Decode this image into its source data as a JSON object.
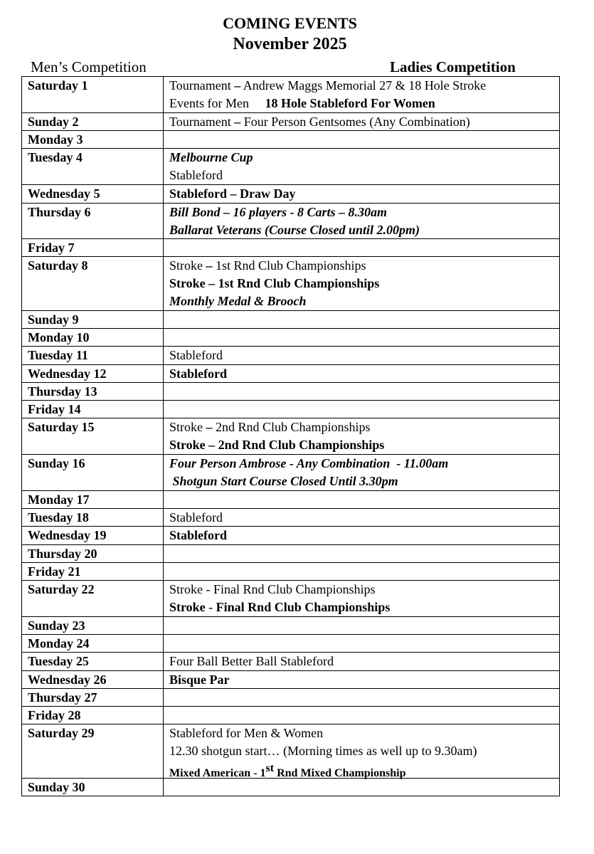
{
  "header": {
    "title": "COMING EVENTS",
    "month": "November 2025",
    "mens_label": "Men’s Competition",
    "ladies_label": "Ladies Competition"
  },
  "rows": [
    {
      "day": "Saturday 1",
      "lines": [
        [
          {
            "t": "Tournament ",
            "s": "n"
          },
          {
            "t": "–",
            "s": "b"
          },
          {
            "t": " Andrew Maggs Memorial 27 & 18 Hole Stroke",
            "s": "n"
          }
        ],
        [
          {
            "t": "Events for Men     ",
            "s": "n"
          },
          {
            "t": "18 Hole Stableford For Women",
            "s": "b"
          }
        ]
      ]
    },
    {
      "day": "Sunday 2",
      "lines": [
        [
          {
            "t": "Tournament ",
            "s": "n"
          },
          {
            "t": "–",
            "s": "b"
          },
          {
            "t": " Four Person Gentsomes (Any Combination)",
            "s": "n"
          }
        ]
      ]
    },
    {
      "day": "Monday 3",
      "lines": []
    },
    {
      "day": "Tuesday 4",
      "lines": [
        [
          {
            "t": "Melbourne Cup",
            "s": "bi"
          }
        ],
        [
          {
            "t": "Stableford",
            "s": "n"
          }
        ]
      ]
    },
    {
      "day": "Wednesday 5",
      "lines": [
        [
          {
            "t": "Stableford – Draw Day",
            "s": "b"
          }
        ]
      ]
    },
    {
      "day": "Thursday 6",
      "lines": [
        [
          {
            "t": "Bill Bond – 16 players - 8 Carts – 8.30am",
            "s": "bi"
          }
        ],
        [
          {
            "t": "Ballarat Veterans (Course Closed until 2.00pm)",
            "s": "bi"
          }
        ]
      ]
    },
    {
      "day": "Friday 7",
      "lines": []
    },
    {
      "day": "Saturday 8",
      "lines": [
        [
          {
            "t": "Stroke ",
            "s": "n"
          },
          {
            "t": "–",
            "s": "b"
          },
          {
            "t": " 1st Rnd Club Championships",
            "s": "n"
          }
        ],
        [
          {
            "t": "Stroke – 1st Rnd Club Championships",
            "s": "b"
          }
        ],
        [
          {
            "t": "Monthly Medal & Brooch",
            "s": "bi"
          }
        ]
      ]
    },
    {
      "day": "Sunday 9",
      "lines": []
    },
    {
      "day": "Monday 10",
      "lines": []
    },
    {
      "day": "Tuesday 11",
      "lines": [
        [
          {
            "t": "Stableford",
            "s": "n"
          }
        ]
      ]
    },
    {
      "day": "Wednesday 12",
      "lines": [
        [
          {
            "t": "Stableford",
            "s": "b"
          }
        ]
      ]
    },
    {
      "day": "Thursday 13",
      "lines": []
    },
    {
      "day": "Friday 14",
      "lines": []
    },
    {
      "day": "Saturday 15",
      "lines": [
        [
          {
            "t": "Stroke ",
            "s": "n"
          },
          {
            "t": "–",
            "s": "b"
          },
          {
            "t": " 2nd Rnd Club Championships",
            "s": "n"
          }
        ],
        [
          {
            "t": "Stroke – 2nd Rnd Club Championships",
            "s": "b"
          }
        ]
      ]
    },
    {
      "day": "Sunday 16",
      "lines": [
        [
          {
            "t": "Four Person Ambrose - Any Combination  - 11.00am",
            "s": "bi"
          }
        ],
        [
          {
            "t": " Shotgun Start Course Closed Until 3.30pm",
            "s": "bi"
          }
        ]
      ]
    },
    {
      "day": "Monday 17",
      "lines": []
    },
    {
      "day": "Tuesday 18",
      "lines": [
        [
          {
            "t": "Stableford",
            "s": "n"
          }
        ]
      ]
    },
    {
      "day": "Wednesday 19",
      "lines": [
        [
          {
            "t": "Stableford",
            "s": "b"
          }
        ]
      ]
    },
    {
      "day": "Thursday 20",
      "lines": []
    },
    {
      "day": "Friday 21",
      "lines": []
    },
    {
      "day": "Saturday 22",
      "lines": [
        [
          {
            "t": "Stroke - Final Rnd Club Championships",
            "s": "n"
          }
        ],
        [
          {
            "t": "Stroke",
            "s": "b"
          },
          {
            "t": " - ",
            "s": "n"
          },
          {
            "t": "Final Rnd Club Championships",
            "s": "b"
          }
        ]
      ]
    },
    {
      "day": "Sunday 23",
      "lines": []
    },
    {
      "day": "Monday 24",
      "lines": []
    },
    {
      "day": "Tuesday 25",
      "lines": [
        [
          {
            "t": "Four Ball Better Ball Stableford",
            "s": "n"
          }
        ]
      ]
    },
    {
      "day": "Wednesday 26",
      "lines": [
        [
          {
            "t": "Bisque Par",
            "s": "b"
          }
        ]
      ]
    },
    {
      "day": "Thursday 27",
      "lines": []
    },
    {
      "day": "Friday 28",
      "lines": []
    },
    {
      "day": "Saturday 29",
      "lines": [
        [
          {
            "t": "Stableford for Men & Women",
            "s": "n"
          }
        ],
        [
          {
            "t": "12.30 shotgun start… (Morning times as well up to 9.30am)",
            "s": "n"
          }
        ],
        [
          {
            "t": "Mixed American - 1",
            "s": "s"
          },
          {
            "t": "st",
            "s": "sup"
          },
          {
            "t": " Rnd Mixed Championship",
            "s": "s"
          }
        ]
      ]
    },
    {
      "day": "Sunday 30",
      "lines": []
    }
  ]
}
